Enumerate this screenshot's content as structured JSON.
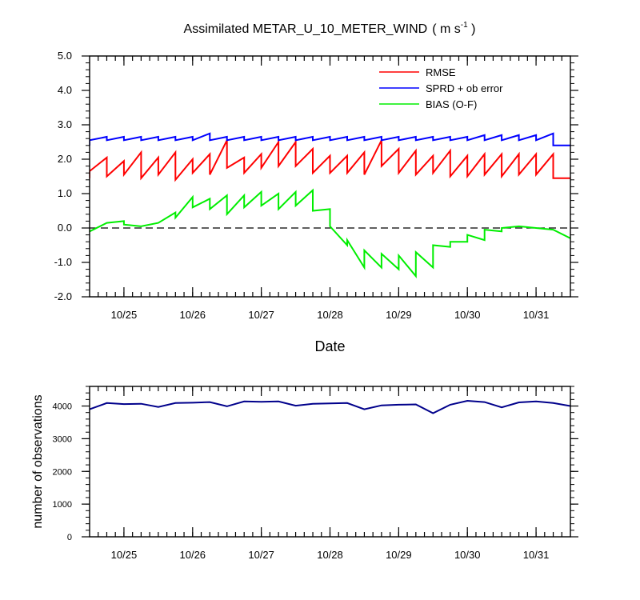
{
  "chart_data": [
    {
      "type": "line",
      "title": "Assimilated METAR_U_10_METER_WIND",
      "units_prefix": "( m s",
      "units_exp": "-1",
      "units_suffix": " )",
      "xlabel": "Date",
      "ylabel": "",
      "x_ticks": [
        "10/25",
        "10/26",
        "10/27",
        "10/28",
        "10/29",
        "10/30",
        "10/31"
      ],
      "x_tick_pos": [
        0.5,
        1.5,
        2.5,
        3.5,
        4.5,
        5.5,
        6.5
      ],
      "xlim": [
        0,
        7.0
      ],
      "ylim": [
        -2.0,
        5.0
      ],
      "y_ticks": [
        -2.0,
        -1.0,
        0.0,
        1.0,
        2.0,
        3.0,
        4.0,
        5.0
      ],
      "y_tick_labels": [
        "-2.0",
        "-1.0",
        "0.0",
        "1.0",
        "2.0",
        "3.0",
        "4.0",
        "5.0"
      ],
      "zero_line": true,
      "legend_position": "top-right",
      "series": [
        {
          "name": "RMSE",
          "color": "#ff0000",
          "points": [
            [
              0.0,
              1.45
            ],
            [
              0.0,
              1.65
            ],
            [
              0.25,
              2.05
            ],
            [
              0.25,
              1.5
            ],
            [
              0.5,
              1.95
            ],
            [
              0.5,
              1.55
            ],
            [
              0.75,
              2.2
            ],
            [
              0.75,
              1.45
            ],
            [
              1.0,
              2.05
            ],
            [
              1.0,
              1.55
            ],
            [
              1.25,
              2.2
            ],
            [
              1.25,
              1.4
            ],
            [
              1.5,
              2.0
            ],
            [
              1.5,
              1.6
            ],
            [
              1.75,
              2.15
            ],
            [
              1.75,
              1.55
            ],
            [
              2.0,
              2.55
            ],
            [
              2.0,
              1.75
            ],
            [
              2.25,
              2.05
            ],
            [
              2.25,
              1.6
            ],
            [
              2.5,
              2.15
            ],
            [
              2.5,
              1.75
            ],
            [
              2.75,
              2.5
            ],
            [
              2.75,
              1.8
            ],
            [
              3.0,
              2.5
            ],
            [
              3.0,
              1.8
            ],
            [
              3.25,
              2.3
            ],
            [
              3.25,
              1.6
            ],
            [
              3.5,
              2.1
            ],
            [
              3.5,
              1.6
            ],
            [
              3.75,
              2.1
            ],
            [
              3.75,
              1.6
            ],
            [
              4.0,
              2.2
            ],
            [
              4.0,
              1.55
            ],
            [
              4.25,
              2.55
            ],
            [
              4.25,
              1.8
            ],
            [
              4.5,
              2.3
            ],
            [
              4.5,
              1.6
            ],
            [
              4.75,
              2.25
            ],
            [
              4.75,
              1.55
            ],
            [
              5.0,
              2.1
            ],
            [
              5.0,
              1.6
            ],
            [
              5.25,
              2.25
            ],
            [
              5.25,
              1.5
            ],
            [
              5.5,
              2.1
            ],
            [
              5.5,
              1.5
            ],
            [
              5.75,
              2.15
            ],
            [
              5.75,
              1.55
            ],
            [
              6.0,
              2.15
            ],
            [
              6.0,
              1.5
            ],
            [
              6.25,
              2.15
            ],
            [
              6.25,
              1.55
            ],
            [
              6.5,
              2.15
            ],
            [
              6.5,
              1.55
            ],
            [
              6.75,
              2.15
            ],
            [
              6.75,
              1.45
            ],
            [
              7.0,
              1.45
            ]
          ]
        },
        {
          "name": "SPRD + ob error",
          "color": "#0000ff",
          "points": [
            [
              0.0,
              2.4
            ],
            [
              0.0,
              2.55
            ],
            [
              0.25,
              2.65
            ],
            [
              0.25,
              2.55
            ],
            [
              0.5,
              2.65
            ],
            [
              0.5,
              2.55
            ],
            [
              0.75,
              2.65
            ],
            [
              0.75,
              2.55
            ],
            [
              1.0,
              2.65
            ],
            [
              1.0,
              2.55
            ],
            [
              1.25,
              2.65
            ],
            [
              1.25,
              2.55
            ],
            [
              1.5,
              2.65
            ],
            [
              1.5,
              2.55
            ],
            [
              1.75,
              2.75
            ],
            [
              1.75,
              2.55
            ],
            [
              2.0,
              2.65
            ],
            [
              2.0,
              2.55
            ],
            [
              2.25,
              2.65
            ],
            [
              2.25,
              2.55
            ],
            [
              2.5,
              2.65
            ],
            [
              2.5,
              2.55
            ],
            [
              2.75,
              2.65
            ],
            [
              2.75,
              2.55
            ],
            [
              3.0,
              2.65
            ],
            [
              3.0,
              2.55
            ],
            [
              3.25,
              2.65
            ],
            [
              3.25,
              2.55
            ],
            [
              3.5,
              2.65
            ],
            [
              3.5,
              2.55
            ],
            [
              3.75,
              2.65
            ],
            [
              3.75,
              2.55
            ],
            [
              4.0,
              2.65
            ],
            [
              4.0,
              2.55
            ],
            [
              4.25,
              2.65
            ],
            [
              4.25,
              2.55
            ],
            [
              4.5,
              2.65
            ],
            [
              4.5,
              2.55
            ],
            [
              4.75,
              2.65
            ],
            [
              4.75,
              2.55
            ],
            [
              5.0,
              2.65
            ],
            [
              5.0,
              2.55
            ],
            [
              5.25,
              2.65
            ],
            [
              5.25,
              2.55
            ],
            [
              5.5,
              2.65
            ],
            [
              5.5,
              2.55
            ],
            [
              5.75,
              2.7
            ],
            [
              5.75,
              2.55
            ],
            [
              6.0,
              2.7
            ],
            [
              6.0,
              2.55
            ],
            [
              6.25,
              2.7
            ],
            [
              6.25,
              2.55
            ],
            [
              6.5,
              2.7
            ],
            [
              6.5,
              2.55
            ],
            [
              6.75,
              2.75
            ],
            [
              6.75,
              2.4
            ],
            [
              7.0,
              2.4
            ]
          ]
        },
        {
          "name": "BIAS (O-F)",
          "color": "#00ee00",
          "points": [
            [
              0.0,
              -0.1
            ],
            [
              0.25,
              0.15
            ],
            [
              0.5,
              0.2
            ],
            [
              0.5,
              0.1
            ],
            [
              0.75,
              0.05
            ],
            [
              1.0,
              0.15
            ],
            [
              1.25,
              0.45
            ],
            [
              1.25,
              0.3
            ],
            [
              1.5,
              0.9
            ],
            [
              1.5,
              0.6
            ],
            [
              1.75,
              0.85
            ],
            [
              1.75,
              0.55
            ],
            [
              2.0,
              0.95
            ],
            [
              2.0,
              0.4
            ],
            [
              2.25,
              0.95
            ],
            [
              2.25,
              0.6
            ],
            [
              2.5,
              1.05
            ],
            [
              2.5,
              0.65
            ],
            [
              2.75,
              1.0
            ],
            [
              2.75,
              0.55
            ],
            [
              3.0,
              1.05
            ],
            [
              3.0,
              0.65
            ],
            [
              3.25,
              1.1
            ],
            [
              3.25,
              0.5
            ],
            [
              3.5,
              0.55
            ],
            [
              3.5,
              0.05
            ],
            [
              3.75,
              -0.5
            ],
            [
              3.75,
              -0.35
            ],
            [
              4.0,
              -1.15
            ],
            [
              4.0,
              -0.65
            ],
            [
              4.25,
              -1.15
            ],
            [
              4.25,
              -0.75
            ],
            [
              4.5,
              -1.2
            ],
            [
              4.5,
              -0.8
            ],
            [
              4.75,
              -1.4
            ],
            [
              4.75,
              -0.7
            ],
            [
              5.0,
              -1.15
            ],
            [
              5.0,
              -0.5
            ],
            [
              5.25,
              -0.55
            ],
            [
              5.25,
              -0.4
            ],
            [
              5.5,
              -0.4
            ],
            [
              5.5,
              -0.2
            ],
            [
              5.75,
              -0.35
            ],
            [
              5.75,
              -0.05
            ],
            [
              6.0,
              -0.1
            ],
            [
              6.0,
              0.0
            ],
            [
              6.25,
              0.05
            ],
            [
              6.5,
              0.0
            ],
            [
              6.75,
              -0.05
            ],
            [
              7.0,
              -0.3
            ]
          ]
        }
      ]
    },
    {
      "type": "line",
      "title": "",
      "xlabel": "",
      "ylabel": "number of observations",
      "x_ticks": [
        "10/25",
        "10/26",
        "10/27",
        "10/28",
        "10/29",
        "10/30",
        "10/31"
      ],
      "x_tick_pos": [
        0.5,
        1.5,
        2.5,
        3.5,
        4.5,
        5.5,
        6.5
      ],
      "xlim": [
        0,
        7.0
      ],
      "ylim": [
        0,
        4600
      ],
      "y_ticks": [
        0,
        1000,
        2000,
        3000,
        4000
      ],
      "y_tick_labels": [
        "0",
        "1000",
        "2000",
        "3000",
        "4000"
      ],
      "series": [
        {
          "name": "",
          "color": "#00008b",
          "points": [
            [
              0.0,
              3900
            ],
            [
              0.25,
              4090
            ],
            [
              0.5,
              4060
            ],
            [
              0.75,
              4070
            ],
            [
              1.0,
              3970
            ],
            [
              1.25,
              4090
            ],
            [
              1.5,
              4100
            ],
            [
              1.75,
              4120
            ],
            [
              2.0,
              3990
            ],
            [
              2.25,
              4140
            ],
            [
              2.5,
              4130
            ],
            [
              2.75,
              4140
            ],
            [
              3.0,
              4010
            ],
            [
              3.25,
              4070
            ],
            [
              3.5,
              4080
            ],
            [
              3.75,
              4090
            ],
            [
              4.0,
              3900
            ],
            [
              4.25,
              4020
            ],
            [
              4.5,
              4040
            ],
            [
              4.75,
              4050
            ],
            [
              5.0,
              3780
            ],
            [
              5.25,
              4040
            ],
            [
              5.5,
              4160
            ],
            [
              5.75,
              4120
            ],
            [
              6.0,
              3960
            ],
            [
              6.25,
              4110
            ],
            [
              6.5,
              4140
            ],
            [
              6.75,
              4090
            ],
            [
              7.0,
              4000
            ]
          ]
        }
      ]
    }
  ]
}
